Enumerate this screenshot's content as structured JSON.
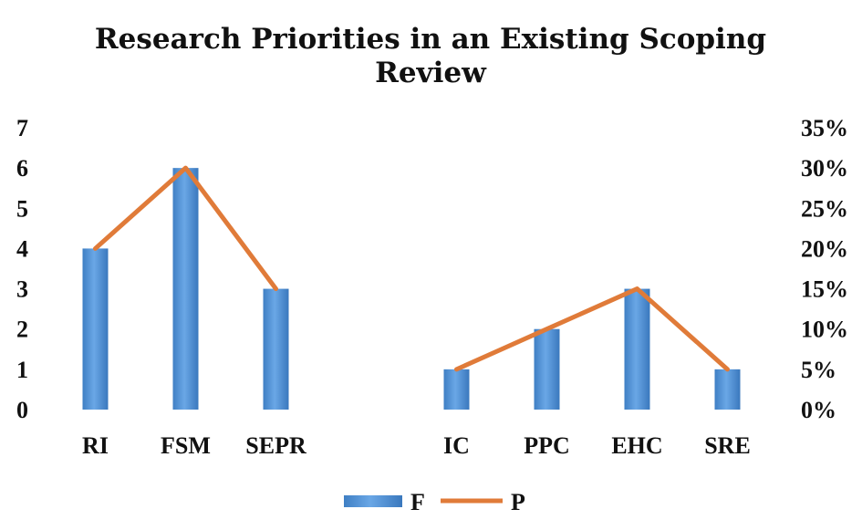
{
  "chart_data": {
    "type": "bar",
    "title": "Research Priorities in an Existing Scoping Review",
    "title_lines": [
      "Research Priorities in an Existing Scoping",
      "Review"
    ],
    "categories": [
      "RI",
      "FSM",
      "SEPR",
      "",
      "IC",
      "PPC",
      "EHC",
      "SRE"
    ],
    "series": [
      {
        "name": "F",
        "type": "bar",
        "axis": "left",
        "values": [
          4,
          6,
          3,
          null,
          1,
          2,
          3,
          1
        ],
        "color": "#4f8fd0"
      },
      {
        "name": "P",
        "type": "line",
        "axis": "right",
        "values": [
          20,
          30,
          15,
          null,
          5,
          10,
          15,
          5
        ],
        "color": "#e07b39"
      }
    ],
    "y_left": {
      "min": 0,
      "max": 7,
      "ticks": [
        "0",
        "1",
        "2",
        "3",
        "4",
        "5",
        "6",
        "7"
      ]
    },
    "y_right": {
      "min": 0,
      "max": 35,
      "ticks": [
        "0%",
        "5%",
        "10%",
        "15%",
        "20%",
        "25%",
        "30%",
        "35%"
      ]
    },
    "grid": false,
    "legend": {
      "placement": "bottom",
      "entries": [
        "F",
        "P"
      ]
    }
  }
}
